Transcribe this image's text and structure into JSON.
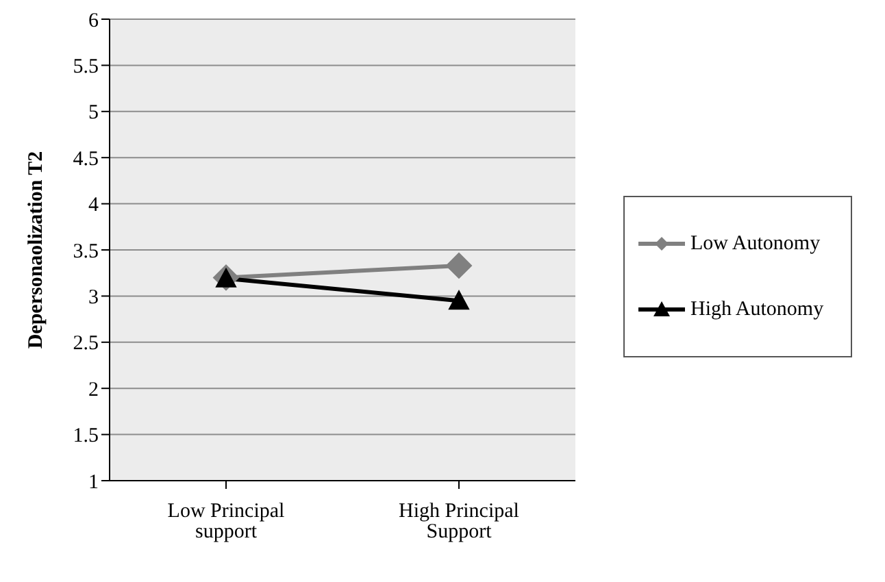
{
  "chart_data": {
    "type": "line",
    "ylabel": "Depersonaolization T2",
    "categories": [
      "Low Principal support",
      "High Principal Support"
    ],
    "series": [
      {
        "name": "Low Autonomy",
        "color": "#808080",
        "values": [
          3.2,
          3.33
        ],
        "marker": "diamond"
      },
      {
        "name": "High Autonomy",
        "color": "#000000",
        "values": [
          3.19,
          2.95
        ],
        "marker": "triangle"
      }
    ],
    "ylim": [
      1,
      6
    ],
    "yticks": [
      1,
      1.5,
      2,
      2.5,
      3,
      3.5,
      4,
      4.5,
      5,
      5.5,
      6
    ],
    "grid": "y",
    "legend": "right",
    "line_style": "solid"
  }
}
